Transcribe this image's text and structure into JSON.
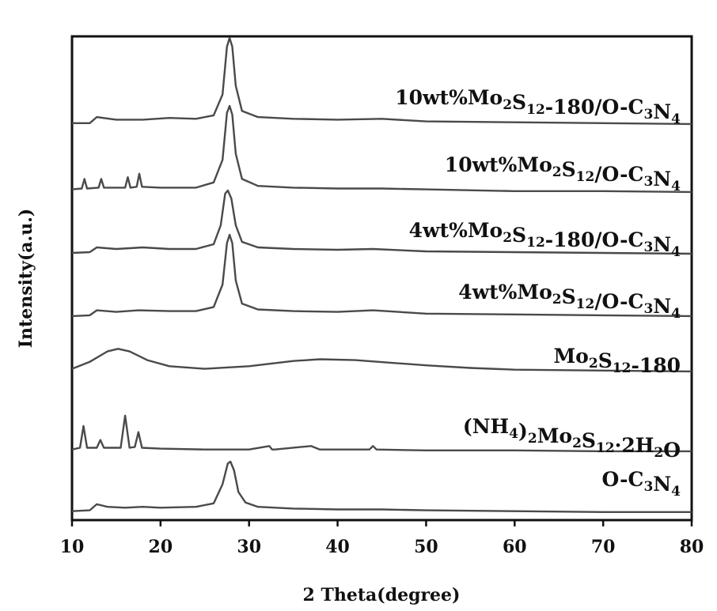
{
  "chart_data": {
    "type": "line",
    "xlabel": "2 Theta(degree)",
    "ylabel": "Intensity(a.u.)",
    "xlim": [
      10,
      80
    ],
    "xticks": [
      10,
      20,
      30,
      40,
      50,
      60,
      70,
      80
    ],
    "yticks_shown": false,
    "grid": false,
    "legend": "inline-right",
    "series": [
      {
        "name": "10wt%Mo2S12-180/O-C3N4",
        "label_parts": [
          [
            "10wt%Mo",
            ""
          ],
          [
            "2",
            "sub"
          ],
          [
            "S",
            ""
          ],
          [
            "12",
            "sub"
          ],
          [
            "-180/O-C",
            ""
          ],
          [
            "3",
            "sub"
          ],
          [
            "N",
            ""
          ],
          [
            "4",
            "sub"
          ]
        ],
        "x": [
          10,
          12,
          12.8,
          15,
          18,
          21,
          24,
          26,
          27,
          27.5,
          27.8,
          28.1,
          28.5,
          29.2,
          31,
          35,
          40,
          45,
          50,
          60,
          70,
          80
        ],
        "y": [
          0.02,
          0.02,
          0.09,
          0.06,
          0.06,
          0.08,
          0.07,
          0.11,
          0.35,
          0.9,
          1.0,
          0.9,
          0.45,
          0.16,
          0.09,
          0.07,
          0.06,
          0.07,
          0.04,
          0.03,
          0.02,
          0.01
        ]
      },
      {
        "name": "10wt%Mo2S12/O-C3N4",
        "label_parts": [
          [
            "10wt%Mo",
            ""
          ],
          [
            "2",
            "sub"
          ],
          [
            "S",
            ""
          ],
          [
            "12",
            "sub"
          ],
          [
            "/O-C",
            ""
          ],
          [
            "3",
            "sub"
          ],
          [
            "N",
            ""
          ],
          [
            "4",
            "sub"
          ]
        ],
        "x": [
          10,
          11.1,
          11.4,
          11.7,
          13,
          13.3,
          13.6,
          16,
          16.3,
          16.6,
          17.3,
          17.6,
          17.9,
          20,
          24,
          26,
          27,
          27.5,
          27.8,
          28.1,
          28.5,
          29.2,
          31,
          35,
          40,
          45,
          50,
          60,
          70,
          80
        ],
        "y": [
          0.04,
          0.05,
          0.16,
          0.05,
          0.06,
          0.16,
          0.06,
          0.06,
          0.18,
          0.06,
          0.07,
          0.22,
          0.07,
          0.06,
          0.06,
          0.12,
          0.38,
          0.92,
          1.0,
          0.9,
          0.45,
          0.16,
          0.08,
          0.06,
          0.05,
          0.05,
          0.04,
          0.02,
          0.02,
          0.01
        ]
      },
      {
        "name": "4wt%Mo2S12-180/O-C3N4",
        "label_parts": [
          [
            "4wt%Mo",
            ""
          ],
          [
            "2",
            "sub"
          ],
          [
            "S",
            ""
          ],
          [
            "12",
            "sub"
          ],
          [
            "-180/O-C",
            ""
          ],
          [
            "3",
            "sub"
          ],
          [
            "N",
            ""
          ],
          [
            "4",
            "sub"
          ]
        ],
        "x": [
          10,
          12,
          12.8,
          15,
          18,
          21,
          24,
          26,
          26.8,
          27.3,
          27.6,
          28.0,
          28.5,
          29.2,
          31,
          35,
          40,
          44,
          50,
          60,
          70,
          80
        ],
        "y": [
          0.03,
          0.04,
          0.1,
          0.08,
          0.1,
          0.08,
          0.08,
          0.14,
          0.38,
          0.78,
          0.82,
          0.72,
          0.38,
          0.17,
          0.1,
          0.08,
          0.07,
          0.08,
          0.05,
          0.04,
          0.03,
          0.02
        ]
      },
      {
        "name": "4wt%Mo2S12/O-C3N4",
        "label_parts": [
          [
            "4wt%Mo",
            ""
          ],
          [
            "2",
            "sub"
          ],
          [
            "S",
            ""
          ],
          [
            "12",
            "sub"
          ],
          [
            "/O-C",
            ""
          ],
          [
            "3",
            "sub"
          ],
          [
            "N",
            ""
          ],
          [
            "4",
            "sub"
          ]
        ],
        "x": [
          10,
          12,
          12.8,
          15,
          17.5,
          21,
          24,
          26,
          27,
          27.5,
          27.8,
          28.1,
          28.5,
          29.2,
          31,
          35,
          40,
          44,
          50,
          60,
          70,
          80
        ],
        "y": [
          0.02,
          0.03,
          0.09,
          0.07,
          0.09,
          0.08,
          0.08,
          0.13,
          0.4,
          0.9,
          1.0,
          0.9,
          0.45,
          0.17,
          0.1,
          0.08,
          0.07,
          0.09,
          0.05,
          0.04,
          0.03,
          0.02
        ]
      },
      {
        "name": "Mo2S12-180",
        "label_parts": [
          [
            "Mo",
            ""
          ],
          [
            "2",
            "sub"
          ],
          [
            "S",
            ""
          ],
          [
            "12",
            "sub"
          ],
          [
            "-180",
            ""
          ]
        ],
        "x": [
          10,
          12,
          14,
          15.2,
          16.5,
          18.5,
          21,
          25,
          30,
          35,
          38,
          42,
          46,
          50,
          55,
          60,
          70,
          80
        ],
        "y": [
          0.04,
          0.12,
          0.24,
          0.27,
          0.24,
          0.14,
          0.07,
          0.04,
          0.07,
          0.13,
          0.15,
          0.14,
          0.11,
          0.08,
          0.05,
          0.03,
          0.02,
          0.01
        ]
      },
      {
        "name": "(NH4)2Mo2S12·2H2O",
        "label_parts": [
          [
            "(NH",
            ""
          ],
          [
            "4",
            "sub"
          ],
          [
            ")",
            ""
          ],
          [
            "2",
            "sub"
          ],
          [
            "Mo",
            ""
          ],
          [
            "2",
            "sub"
          ],
          [
            "S",
            ""
          ],
          [
            "12",
            "sub"
          ],
          [
            "·2H",
            ""
          ],
          [
            "2",
            "sub"
          ],
          [
            "O",
            ""
          ]
        ],
        "x": [
          10,
          10.9,
          11.3,
          11.7,
          12.8,
          13.2,
          13.6,
          15.5,
          16,
          16.5,
          17.1,
          17.5,
          17.9,
          20,
          25,
          30,
          32.3,
          32.6,
          32.9,
          37,
          38,
          43.6,
          44,
          44.4,
          50,
          60,
          70,
          80
        ],
        "y": [
          0.03,
          0.05,
          0.3,
          0.05,
          0.05,
          0.14,
          0.05,
          0.05,
          0.42,
          0.05,
          0.06,
          0.23,
          0.05,
          0.04,
          0.03,
          0.03,
          0.07,
          0.03,
          0.03,
          0.07,
          0.03,
          0.03,
          0.07,
          0.03,
          0.02,
          0.02,
          0.01,
          0.01
        ]
      },
      {
        "name": "O-C3N4",
        "label_parts": [
          [
            "O-C",
            ""
          ],
          [
            "3",
            "sub"
          ],
          [
            "N",
            ""
          ],
          [
            "4",
            "sub"
          ]
        ],
        "x": [
          10,
          12,
          12.8,
          14,
          16,
          18,
          20,
          24,
          26,
          27,
          27.6,
          27.9,
          28.3,
          28.8,
          29.6,
          31,
          35,
          40,
          45,
          50,
          60,
          70,
          80
        ],
        "y": [
          0.03,
          0.04,
          0.11,
          0.08,
          0.07,
          0.08,
          0.07,
          0.08,
          0.12,
          0.34,
          0.58,
          0.6,
          0.5,
          0.25,
          0.13,
          0.08,
          0.06,
          0.05,
          0.05,
          0.04,
          0.03,
          0.02,
          0.02
        ]
      }
    ]
  }
}
